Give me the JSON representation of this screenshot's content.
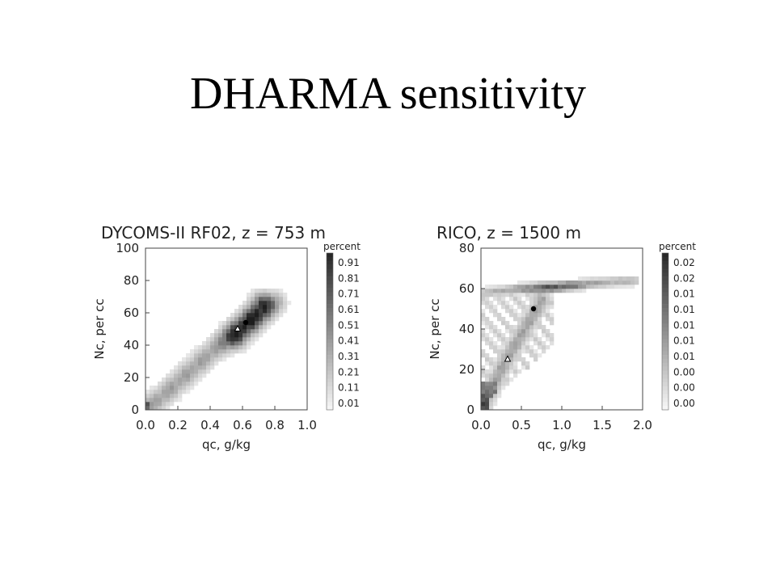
{
  "slide": {
    "title": "DHARMA sensitivity"
  },
  "chart_data": [
    {
      "type": "heatmap",
      "title": "DYCOMS-II RF02, z = 753 m",
      "xlabel": "qc, g/kg",
      "ylabel": "Nc, per cc",
      "xlim": [
        0,
        1.0
      ],
      "ylim": [
        0,
        100
      ],
      "xticks": [
        "0.0",
        "0.2",
        "0.4",
        "0.6",
        "0.8",
        "1.0"
      ],
      "yticks": [
        "0",
        "20",
        "40",
        "60",
        "80",
        "100"
      ],
      "colorbar": {
        "label": "percent",
        "ticks": [
          "0.91",
          "0.81",
          "0.71",
          "0.61",
          "0.51",
          "0.41",
          "0.31",
          "0.21",
          "0.11",
          "0.01"
        ]
      },
      "distribution": {
        "description_values": "joint frequency concentrated along diagonal band, peak near qc 0.65, Nc 55",
        "peak": {
          "x": 0.65,
          "y": 55
        },
        "ridge": [
          [
            0.02,
            2
          ],
          [
            0.1,
            8
          ],
          [
            0.2,
            17
          ],
          [
            0.3,
            26
          ],
          [
            0.4,
            35
          ],
          [
            0.5,
            44
          ],
          [
            0.6,
            52
          ],
          [
            0.7,
            60
          ],
          [
            0.8,
            66
          ]
        ],
        "core": [
          [
            0.55,
            45
          ],
          [
            0.6,
            50
          ],
          [
            0.65,
            55
          ],
          [
            0.7,
            60
          ],
          [
            0.72,
            65
          ]
        ]
      },
      "markers": [
        {
          "shape": "circle",
          "x": 0.62,
          "y": 54
        },
        {
          "shape": "triangle",
          "x": 0.57,
          "y": 50
        }
      ]
    },
    {
      "type": "heatmap",
      "title": "RICO, z = 1500 m",
      "xlabel": "qc, g/kg",
      "ylabel": "Nc, per cc",
      "xlim": [
        0,
        2.0
      ],
      "ylim": [
        0,
        80
      ],
      "xticks": [
        "0.0",
        "0.5",
        "1.0",
        "1.5",
        "2.0"
      ],
      "yticks": [
        "0",
        "20",
        "40",
        "60",
        "80"
      ],
      "colorbar": {
        "label": "percent",
        "ticks": [
          "0.02",
          "0.02",
          "0.01",
          "0.01",
          "0.01",
          "0.01",
          "0.01",
          "0.00",
          "0.00",
          "0.00"
        ]
      },
      "distribution": {
        "peak": {
          "x": 0.9,
          "y": 60
        },
        "band": [
          [
            0.05,
            58
          ],
          [
            0.5,
            60
          ],
          [
            1.0,
            61
          ],
          [
            1.5,
            63
          ],
          [
            1.9,
            64
          ]
        ],
        "ramp": [
          [
            0.02,
            2
          ],
          [
            0.1,
            8
          ],
          [
            0.2,
            16
          ],
          [
            0.3,
            24
          ],
          [
            0.45,
            34
          ],
          [
            0.6,
            44
          ],
          [
            0.75,
            54
          ]
        ]
      },
      "markers": [
        {
          "shape": "circle",
          "x": 0.65,
          "y": 50
        },
        {
          "shape": "triangle",
          "x": 0.33,
          "y": 25
        }
      ]
    }
  ]
}
